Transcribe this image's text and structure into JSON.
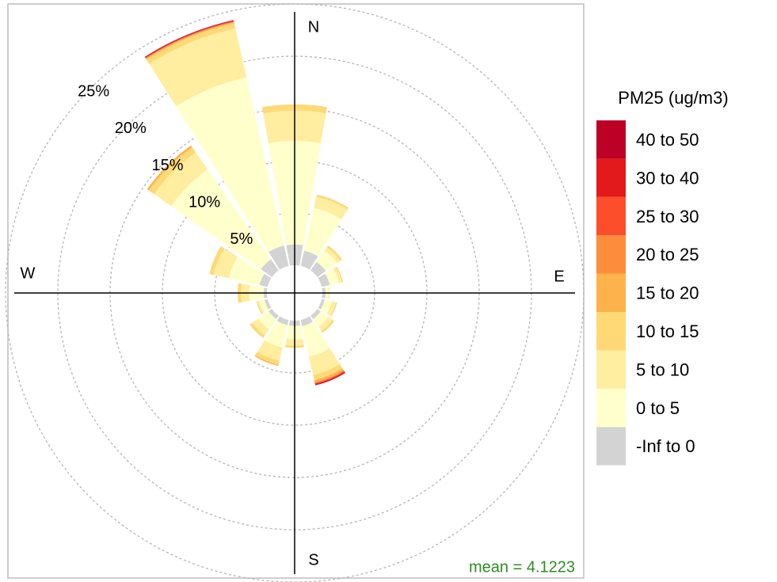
{
  "chart_data": {
    "type": "pollution-rose",
    "legend_title": "PM25 (ug/m3)",
    "annotation": "mean = 4.1223",
    "compass_labels": [
      "N",
      "E",
      "S",
      "W"
    ],
    "x": [
      0,
      22.5,
      45,
      67.5,
      90,
      112.5,
      135,
      157.5,
      180,
      202.5,
      225,
      247.5,
      270,
      292.5,
      315,
      337.5
    ],
    "ylim": [
      0,
      25
    ],
    "yticks": [
      {
        "value": 5,
        "label": "5%"
      },
      {
        "value": 10,
        "label": "10%"
      },
      {
        "value": 15,
        "label": "15%"
      },
      {
        "value": 20,
        "label": "20%"
      },
      {
        "value": 25,
        "label": "25%"
      }
    ],
    "grid": true,
    "legend_position": "right",
    "series": [
      {
        "name": "-Inf to 0",
        "color": "#d3d3d3",
        "values": [
          2.0,
          1.5,
          1.0,
          0.8,
          0.3,
          0.3,
          0.4,
          0.6,
          0.5,
          0.5,
          0.4,
          0.3,
          0.3,
          0.8,
          1.3,
          2.0
        ]
      },
      {
        "name": "0 to 5",
        "color": "#ffffcc",
        "values": [
          9.9,
          4.2,
          1.3,
          0.9,
          0.3,
          0.7,
          0.9,
          3.0,
          1.3,
          2.2,
          1.2,
          0.5,
          1.4,
          3.0,
          10.5,
          16.5
        ]
      },
      {
        "name": "5 to 10",
        "color": "#ffeda0",
        "values": [
          2.9,
          1.1,
          0.4,
          0.3,
          0.1,
          0.4,
          0.5,
          1.8,
          0.6,
          1.3,
          0.7,
          0.2,
          0.8,
          1.5,
          2.0,
          4.8
        ]
      },
      {
        "name": "10 to 15",
        "color": "#fed976",
        "values": [
          0.6,
          0.2,
          0.2,
          0.1,
          0,
          0.1,
          0.2,
          0.5,
          0.2,
          0.4,
          0.3,
          0.1,
          0.3,
          0.4,
          0.6,
          0.5
        ]
      },
      {
        "name": "15 to 20",
        "color": "#feb24c",
        "values": [
          0,
          0,
          0,
          0,
          0,
          0,
          0,
          0.2,
          0,
          0.1,
          0,
          0,
          0,
          0,
          0.2,
          0.1
        ]
      },
      {
        "name": "20 to 25",
        "color": "#fd8d3c",
        "values": [
          0,
          0,
          0,
          0,
          0,
          0,
          0,
          0.1,
          0,
          0,
          0,
          0,
          0,
          0,
          0,
          0.05
        ]
      },
      {
        "name": "25 to 30",
        "color": "#fc4e2a",
        "values": [
          0,
          0,
          0,
          0,
          0,
          0,
          0,
          0.05,
          0,
          0,
          0,
          0,
          0,
          0,
          0,
          0.05
        ]
      },
      {
        "name": "30 to 40",
        "color": "#e31a1c",
        "values": [
          0,
          0,
          0,
          0,
          0,
          0,
          0,
          0.1,
          0,
          0,
          0,
          0,
          0,
          0,
          0,
          0.05
        ]
      },
      {
        "name": "40 to 50",
        "color": "#bd0026",
        "values": [
          0,
          0,
          0,
          0,
          0,
          0,
          0,
          0.05,
          0,
          0,
          0,
          0,
          0,
          0,
          0,
          0.05
        ]
      }
    ]
  }
}
